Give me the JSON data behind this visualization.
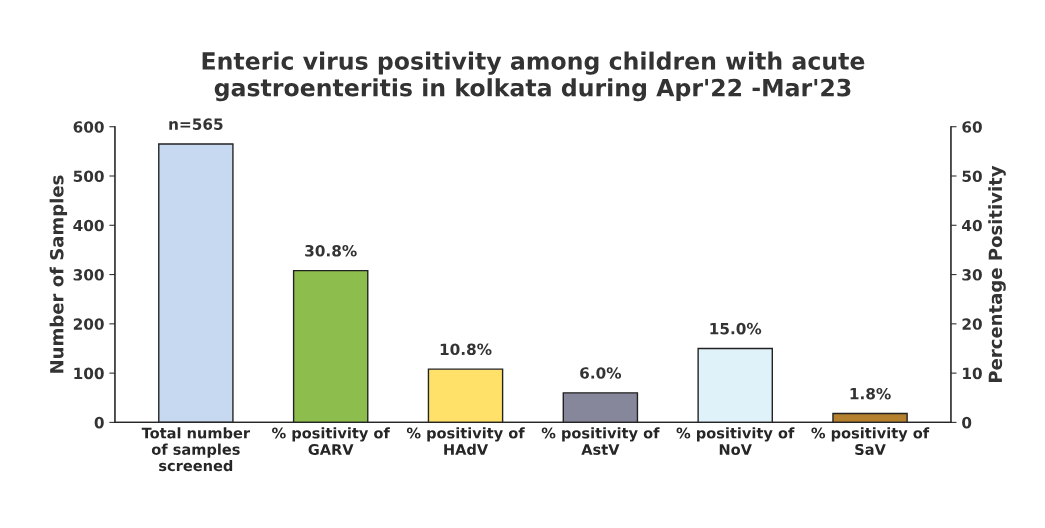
{
  "chart_data": {
    "type": "bar",
    "title": "Enteric virus positivity among children with acute\ngastroenteritis in kolkata during Apr'22 -Mar'23",
    "categories": [
      "Total number\nof samples\nscreened",
      "% positivity of\nGARV",
      "% positivity of\nHAdV",
      "% positivity of\nAstV",
      "% positivity of\nNoV",
      "% positivity of\nSaV"
    ],
    "series": [
      {
        "axis": "y",
        "colors": [
          "#c6d9f0",
          null,
          null,
          null,
          null,
          null
        ],
        "values": [
          565,
          null,
          null,
          null,
          null,
          null
        ],
        "value_labels": [
          "n=565",
          null,
          null,
          null,
          null,
          null
        ]
      },
      {
        "axis": "y2",
        "colors": [
          null,
          "#8dbd4c",
          "#ffe169",
          "#86879a",
          "#dff2fa",
          "#b5812f"
        ],
        "values": [
          null,
          30.8,
          10.8,
          6.0,
          15.0,
          1.8
        ],
        "value_labels": [
          null,
          "30.8%",
          "10.8%",
          "6.0%",
          "15.0%",
          "1.8%"
        ]
      }
    ],
    "ylabel": "Number of Samples",
    "y2label": "Percentage Positivity",
    "ylim": [
      0,
      600
    ],
    "yticks": [
      0,
      100,
      200,
      300,
      400,
      500,
      600
    ],
    "y2lim": [
      0,
      60
    ],
    "y2ticks": [
      0,
      10,
      20,
      30,
      40,
      50,
      60
    ],
    "grid": false,
    "legend": false
  }
}
